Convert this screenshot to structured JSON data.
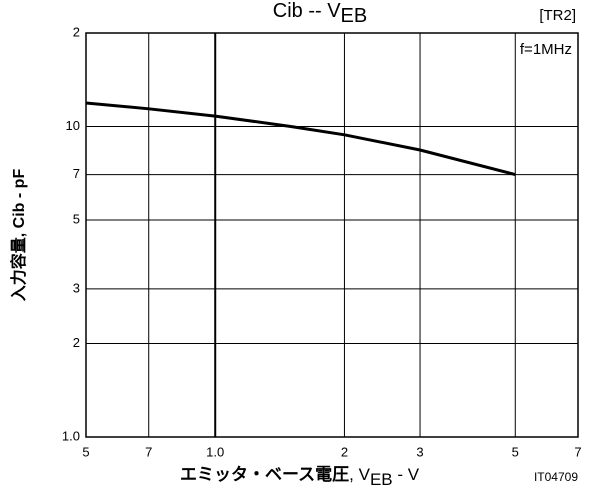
{
  "chart_data": {
    "type": "line",
    "title": [
      "Cib  --  V",
      "EB"
    ],
    "annotations": [
      "[TR2]",
      "f=1MHz",
      "IT04709"
    ],
    "xlabel": [
      "エミッタ・ベース電圧",
      ", V",
      "EB",
      " - V"
    ],
    "ylabel": "入力容量, Cib - pF",
    "x": [
      0.5,
      0.7,
      1,
      1.5,
      2,
      3,
      5
    ],
    "series": [
      {
        "color": "#000000",
        "values": [
          11.9,
          11.4,
          10.8,
          10,
          9.4,
          8.4,
          7.0
        ]
      }
    ],
    "xscale": "log",
    "yscale": "log",
    "grid": true,
    "xlim": [
      0.5,
      7
    ],
    "ylim": [
      1,
      20
    ],
    "xticks": [
      {
        "value": 0.5,
        "label": "5"
      },
      {
        "value": 0.7,
        "label": "7"
      },
      {
        "value": 1,
        "label": "1.0"
      },
      2,
      3,
      5,
      7
    ],
    "yticks": [
      {
        "value": 1,
        "label": "1.0"
      },
      2,
      3,
      5,
      7,
      10,
      {
        "value": 20,
        "label": "2"
      }
    ]
  }
}
